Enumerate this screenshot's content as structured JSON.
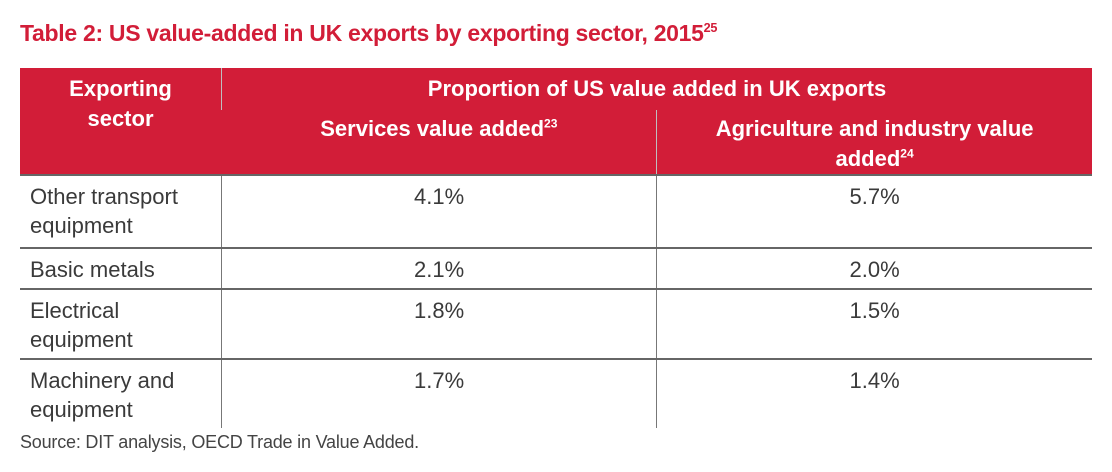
{
  "title": {
    "text": "Table 2: US value-added in UK exports by exporting sector, 2015",
    "footnote": "25"
  },
  "table": {
    "header": {
      "sector": "Exporting sector",
      "group": "Proportion of US value added in UK exports",
      "col1": {
        "text": "Services value added",
        "footnote": "23"
      },
      "col2": {
        "text": "Agriculture and industry value added",
        "footnote": "24"
      }
    },
    "rows": [
      {
        "sector": "Other transport equipment",
        "services": "4.1%",
        "agri_industry": "5.7%"
      },
      {
        "sector": "Basic metals",
        "services": "2.1%",
        "agri_industry": "2.0%"
      },
      {
        "sector": "Electrical equipment",
        "services": "1.8%",
        "agri_industry": "1.5%"
      },
      {
        "sector": "Machinery and equipment",
        "services": "1.7%",
        "agri_industry": "1.4%"
      }
    ]
  },
  "source": "Source: DIT analysis, OECD Trade in Value Added.",
  "colors": {
    "accent": "#d21d38",
    "text": "#3a3a3a"
  }
}
